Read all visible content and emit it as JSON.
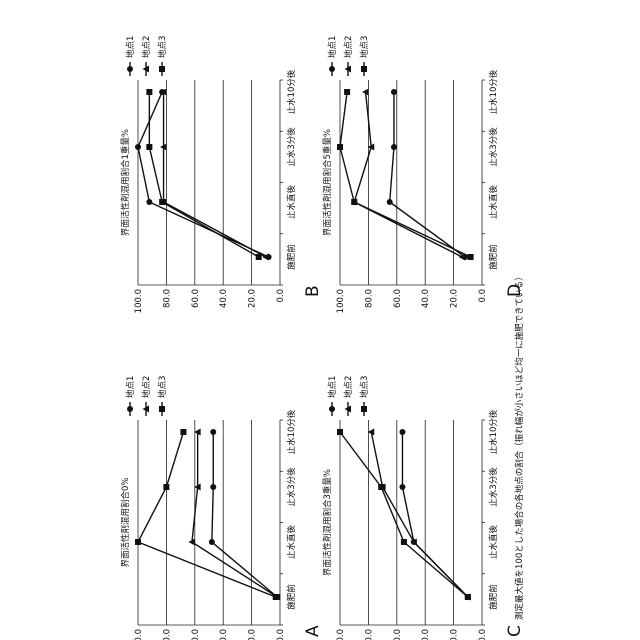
{
  "footnote": "測定最大値を100とした場合の各地点の割合（振れ幅が小さいほど均一に施肥できている）",
  "chart_data": [
    {
      "type": "line",
      "panel": "A",
      "title": "界面活性剤混用割合0%",
      "categories": [
        "施肥前",
        "止水直後",
        "止水3分後",
        "止水10分後"
      ],
      "ylim": [
        0,
        100
      ],
      "yticks": [
        "0.0",
        "20.0",
        "40.0",
        "60.0",
        "80.0",
        "100.0"
      ],
      "grid": true,
      "legend_position": "top-right",
      "series": [
        {
          "name": "地点1",
          "marker": "circle",
          "values": [
            2,
            48,
            47,
            47
          ]
        },
        {
          "name": "地点2",
          "marker": "triangle",
          "values": [
            2,
            62,
            58,
            58
          ]
        },
        {
          "name": "地点3",
          "marker": "square",
          "values": [
            3,
            100,
            80,
            68
          ]
        }
      ]
    },
    {
      "type": "line",
      "panel": "B",
      "title": "界面活性剤混用割合1重量%",
      "categories": [
        "施肥前",
        "止水直後",
        "止水3分後",
        "止水10分後"
      ],
      "ylim": [
        0,
        100
      ],
      "yticks": [
        "0.0",
        "20.0",
        "40.0",
        "60.0",
        "80.0",
        "100.0"
      ],
      "grid": true,
      "legend_position": "top-right",
      "series": [
        {
          "name": "地点1",
          "marker": "circle",
          "values": [
            8,
            92,
            100,
            83
          ]
        },
        {
          "name": "地点2",
          "marker": "triangle",
          "values": [
            10,
            82,
            82,
            82
          ]
        },
        {
          "name": "地点3",
          "marker": "square",
          "values": [
            15,
            83,
            92,
            92
          ]
        }
      ]
    },
    {
      "type": "line",
      "panel": "C",
      "title": "界面活性剤混用割合3重量%",
      "categories": [
        "施肥前",
        "止水直後",
        "止水3分後",
        "止水10分後"
      ],
      "ylim": [
        0,
        100
      ],
      "yticks": [
        "0.0",
        "20.0",
        "40.0",
        "60.0",
        "80.0",
        "100.0"
      ],
      "grid": true,
      "legend_position": "top-right",
      "series": [
        {
          "name": "地点1",
          "marker": "circle",
          "values": [
            10,
            48,
            56,
            56
          ]
        },
        {
          "name": "地点2",
          "marker": "triangle",
          "values": [
            10,
            48,
            70,
            78
          ]
        },
        {
          "name": "地点3",
          "marker": "square",
          "values": [
            10,
            55,
            71,
            100
          ]
        }
      ]
    },
    {
      "type": "line",
      "panel": "D",
      "title": "界面活性剤混用割合5重量%",
      "categories": [
        "施肥前",
        "止水直後",
        "止水3分後",
        "止水10分後"
      ],
      "ylim": [
        0,
        100
      ],
      "yticks": [
        "0.0",
        "20.0",
        "40.0",
        "60.0",
        "80.0",
        "100.0"
      ],
      "grid": true,
      "legend_position": "top-right",
      "series": [
        {
          "name": "地点1",
          "marker": "circle",
          "values": [
            12,
            65,
            62,
            62
          ]
        },
        {
          "name": "地点2",
          "marker": "triangle",
          "values": [
            14,
            90,
            78,
            82
          ]
        },
        {
          "name": "地点3",
          "marker": "square",
          "values": [
            8,
            90,
            100,
            95
          ]
        }
      ]
    }
  ]
}
